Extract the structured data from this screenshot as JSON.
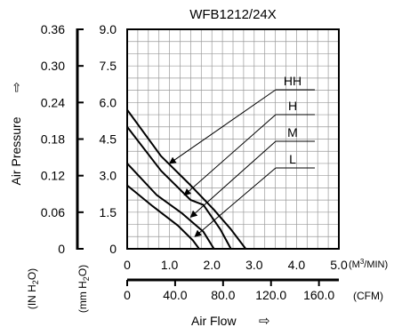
{
  "chart_data": {
    "type": "line",
    "title": "WFB1212/24X",
    "x": {
      "label": "Air Flow",
      "arrow": "⇨",
      "primary": {
        "unit_pre": "(M",
        "unit_sup": "3",
        "unit_post": "/MIN)",
        "range": [
          0,
          5.0
        ],
        "ticks": [
          "0",
          "1.0",
          "2.0",
          "3.0",
          "4.0",
          "5.0"
        ]
      },
      "secondary": {
        "unit": "(CFM)",
        "range": [
          0,
          176.6
        ],
        "tick_values": [
          0,
          40,
          80,
          120,
          160
        ],
        "ticks": [
          "0",
          "40.0",
          "80.0",
          "120.0",
          "160.0"
        ]
      }
    },
    "y": {
      "label": "Air Pressure",
      "arrow": "⇨",
      "primary": {
        "unit_pre": "(mm H",
        "unit_sub": "2",
        "unit_post": "O)",
        "range": [
          0,
          9.0
        ],
        "ticks": [
          "0",
          "1.5",
          "3.0",
          "4.5",
          "6.0",
          "7.5",
          "9.0"
        ]
      },
      "secondary": {
        "unit_pre": "(IN H",
        "unit_sub": "2",
        "unit_post": "O)",
        "range": [
          0,
          0.36
        ],
        "ticks": [
          "0",
          "0.06",
          "0.12",
          "0.18",
          "0.24",
          "0.30",
          "0.36"
        ]
      }
    },
    "grid": true,
    "legend_placement": "top-right",
    "series": [
      {
        "name": "HH",
        "points": [
          [
            0,
            5.7
          ],
          [
            0.8,
            3.8
          ],
          [
            1.5,
            2.6
          ],
          [
            2.05,
            1.6
          ],
          [
            2.45,
            0.8
          ],
          [
            2.8,
            0
          ]
        ]
      },
      {
        "name": "H",
        "points": [
          [
            0,
            5.0
          ],
          [
            0.8,
            3.2
          ],
          [
            1.5,
            2.0
          ],
          [
            1.8,
            1.8
          ],
          [
            2.2,
            0.8
          ],
          [
            2.45,
            0
          ]
        ]
      },
      {
        "name": "M",
        "points": [
          [
            0,
            3.5
          ],
          [
            0.7,
            2.2
          ],
          [
            1.3,
            1.45
          ],
          [
            1.8,
            0.7
          ],
          [
            2.05,
            0
          ]
        ]
      },
      {
        "name": "L",
        "points": [
          [
            0,
            2.6
          ],
          [
            0.6,
            1.75
          ],
          [
            1.2,
            0.95
          ],
          [
            1.55,
            0.35
          ],
          [
            1.7,
            0
          ]
        ]
      }
    ],
    "label_links": [
      {
        "series": "HH",
        "at": [
          1.0,
          3.5
        ]
      },
      {
        "series": "H",
        "at": [
          1.35,
          2.2
        ]
      },
      {
        "series": "M",
        "at": [
          1.5,
          1.3
        ]
      },
      {
        "series": "L",
        "at": [
          1.6,
          0.5
        ]
      }
    ]
  }
}
